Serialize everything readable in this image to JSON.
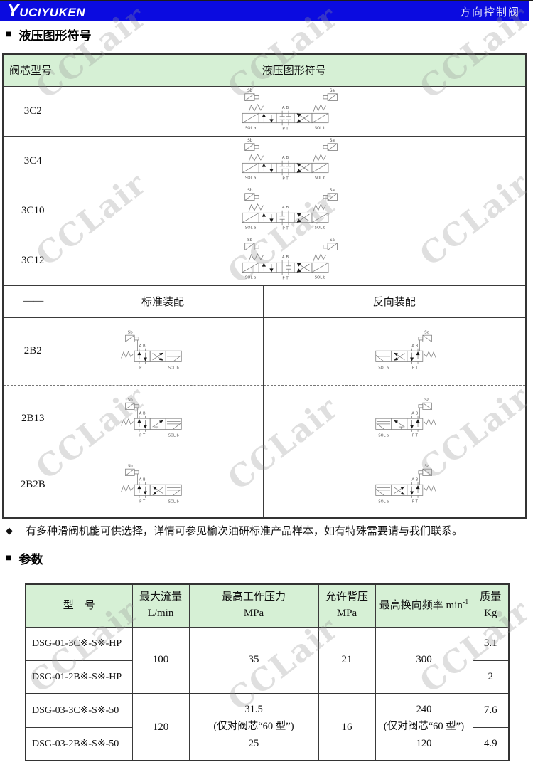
{
  "header": {
    "logo_initial": "Y",
    "logo_rest": "UCIYUKEN",
    "page_title": "方向控制阀"
  },
  "sections": {
    "symbols_title": "液压图形符号",
    "params_title": "参数"
  },
  "symbols": {
    "col1_header": "阀芯型号",
    "col2_header": "液压图形符号",
    "dash": "——",
    "standard_label": "标准装配",
    "reverse_label": "反向装配",
    "labels": {
      "sb": "Sb",
      "sa": "Sa",
      "ab": "A B",
      "pt": "P T",
      "sol_a": "SOL a",
      "sol_b": "SOL b"
    },
    "rows_3pos": [
      {
        "model": "3C2",
        "center": "c2"
      },
      {
        "model": "3C4",
        "center": "c4"
      },
      {
        "model": "3C10",
        "center": "c10"
      },
      {
        "model": "3C12",
        "center": "c12"
      }
    ],
    "rows_2pos": [
      {
        "model": "2B2",
        "variant": "b2"
      },
      {
        "model": "2B13",
        "variant": "b13"
      },
      {
        "model": "2B2B",
        "variant": "b2b"
      }
    ]
  },
  "note": {
    "bullet": "◆",
    "text": "有多种滑阀机能可供选择，详情可参见榆次油研标准产品样本，如有特殊需要请与我们联系。"
  },
  "params": {
    "headers": {
      "model": "型　号",
      "flow_l1": "最大流量",
      "flow_l2": "L/min",
      "pressure_l1": "最高工作压力",
      "pressure_l2": "MPa",
      "back_l1": "允许背压",
      "back_l2": "MPa",
      "freq_text": "最高换向频率 min",
      "freq_sup": "-1",
      "mass_l1": "质量",
      "mass_l2": "Kg"
    },
    "group1": {
      "model_a": "DSG-01-3C※-S※-HP",
      "model_b": "DSG-01-2B※-S※-HP",
      "flow": "100",
      "pressure": "35",
      "back": "21",
      "freq": "300",
      "mass_a": "3.1",
      "mass_b": "2"
    },
    "group2": {
      "model_a": "DSG-03-3C※-S※-50",
      "model_b": "DSG-03-2B※-S※-50",
      "flow": "120",
      "pressure_l1": "31.5",
      "pressure_l2": "(仅对阀芯“60 型”)",
      "pressure_l3": "25",
      "back": "16",
      "freq_l1": "240",
      "freq_l2": "(仅对阀芯“60 型”)",
      "freq_l3": "120",
      "mass_a": "7.6",
      "mass_b": "4.9"
    }
  },
  "watermark": {
    "text": "CCLair"
  },
  "colors": {
    "header_blue": "#0b0be0",
    "table_header_green": "#d6f0d5"
  }
}
